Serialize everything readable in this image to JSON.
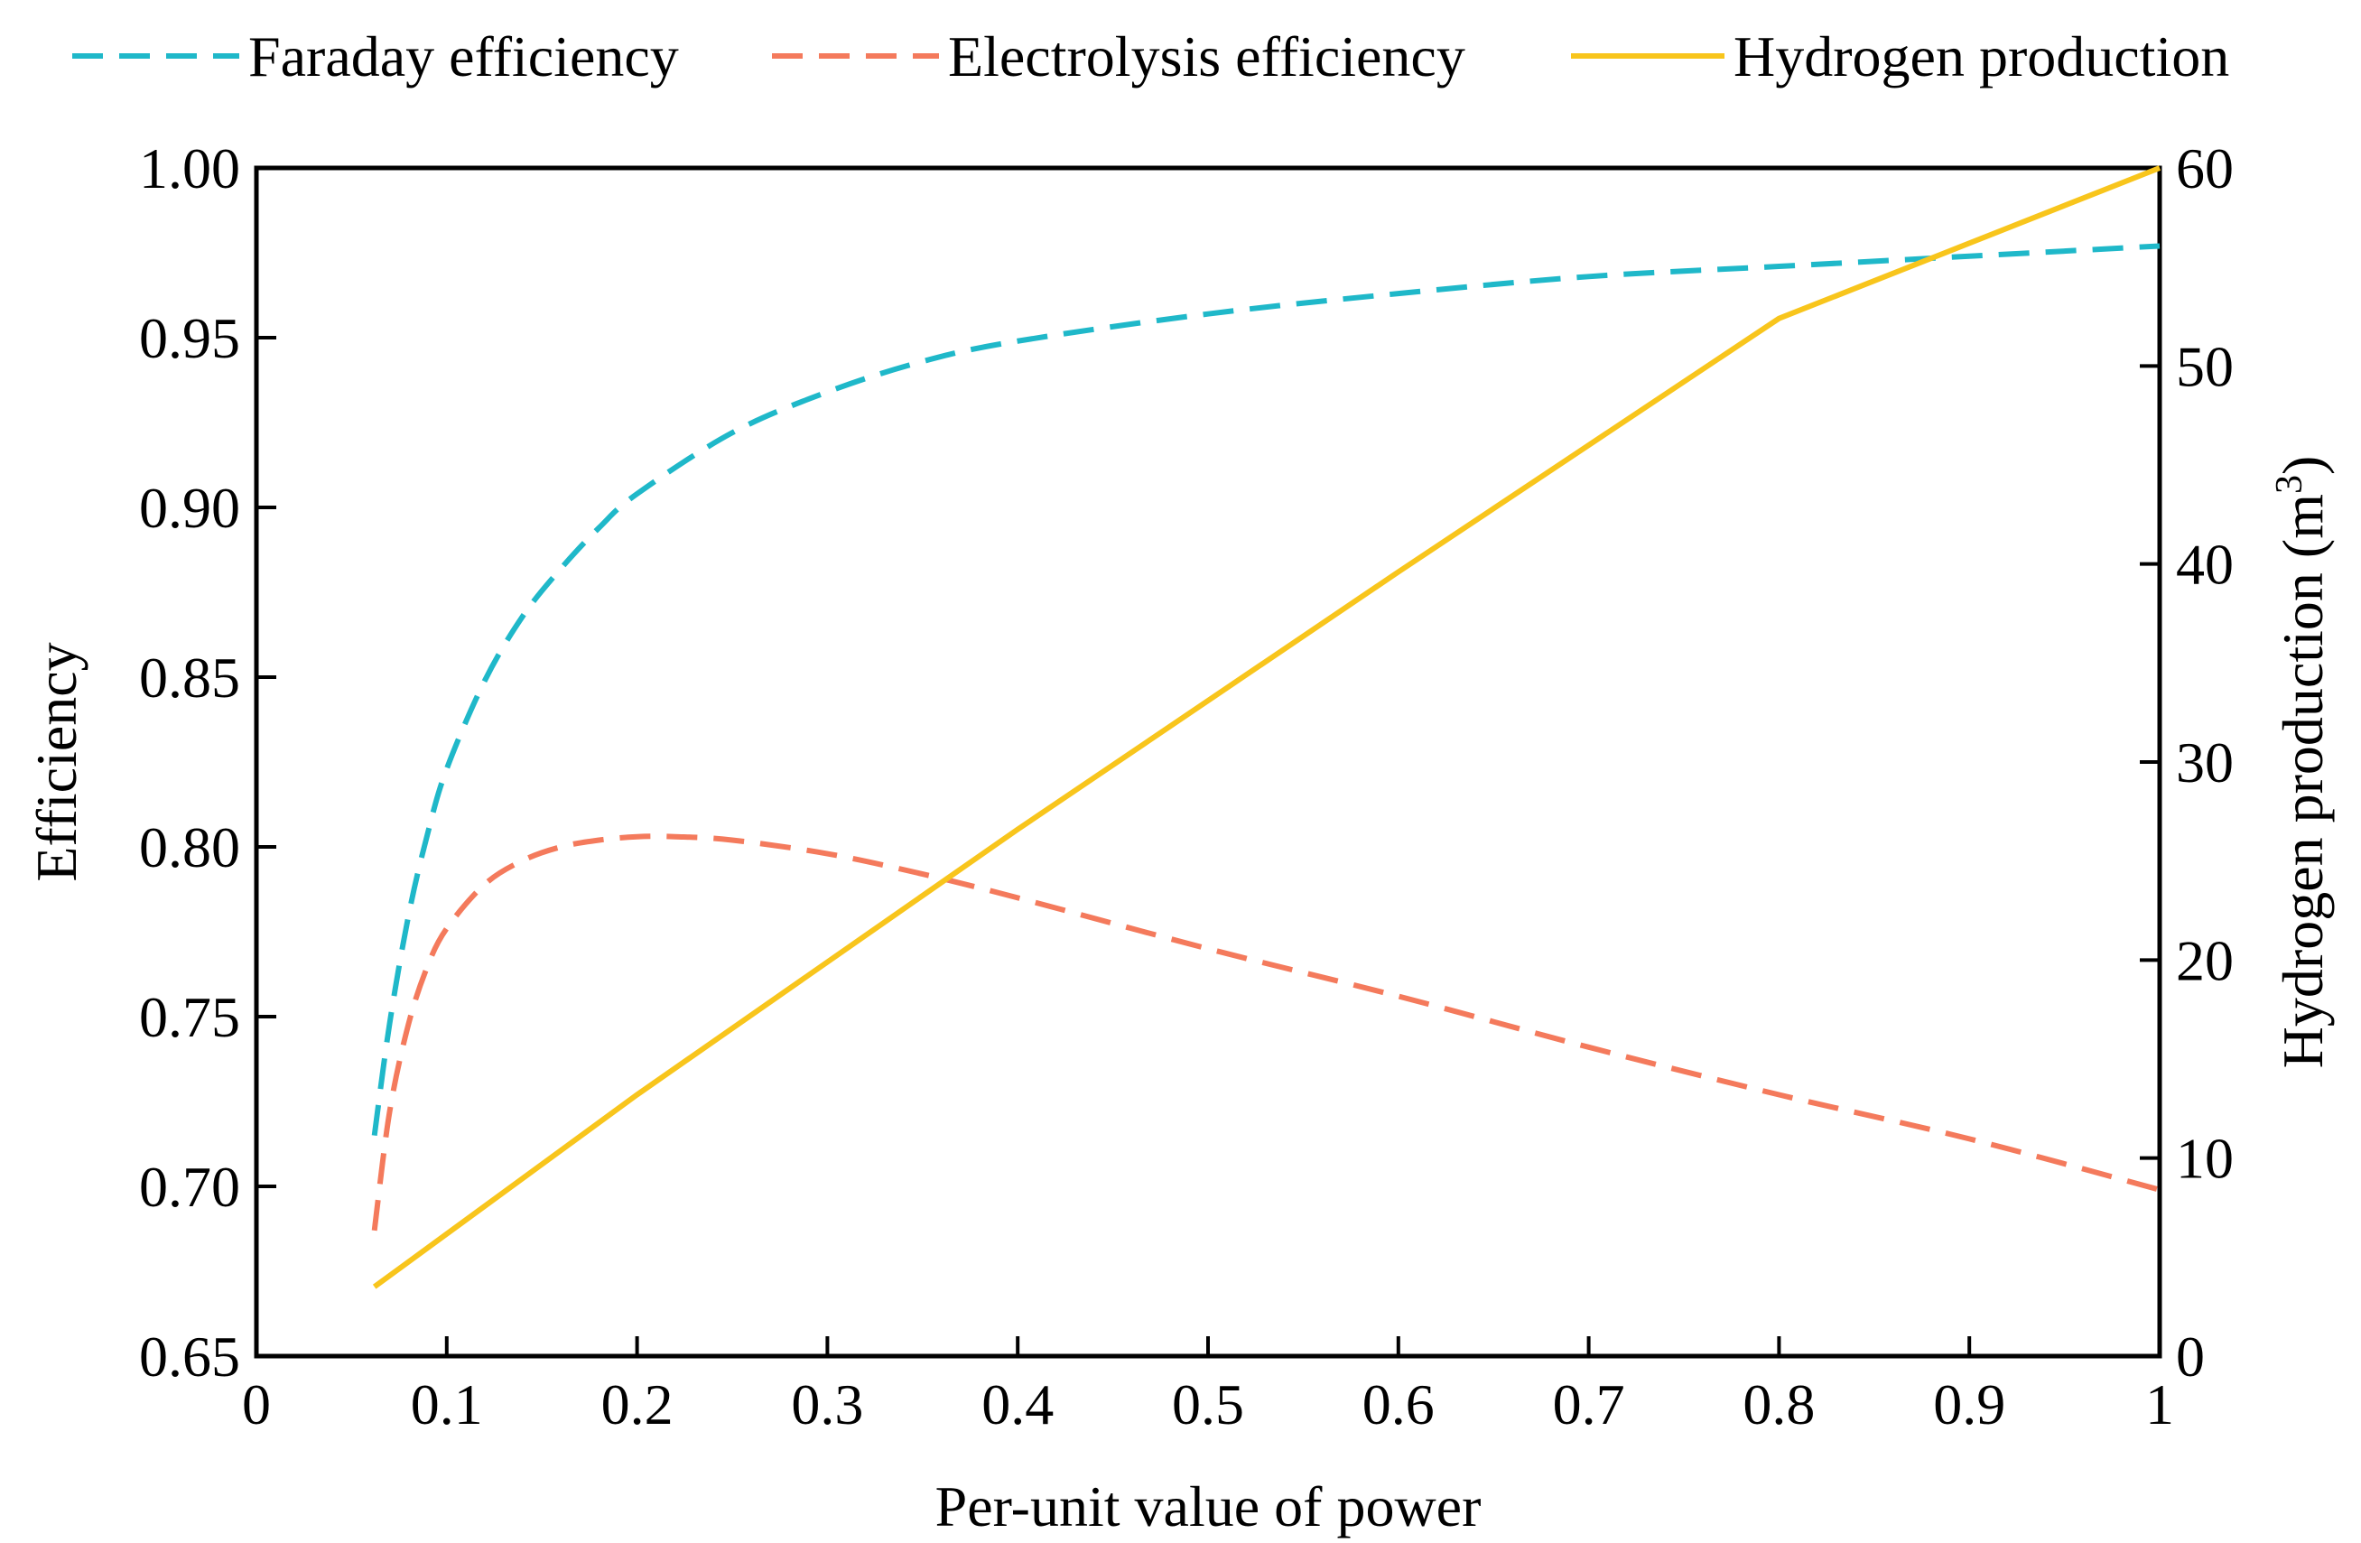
{
  "chart_data": {
    "type": "line",
    "title": "",
    "xlabel": "Per-unit value of power",
    "ylabel": "Efficiency",
    "y2label": {
      "text": "Hydrogen production (m",
      "sup": "3",
      "close": ")"
    },
    "xlim": [
      0,
      1
    ],
    "ylim": [
      0.65,
      1.0
    ],
    "y2lim": [
      0,
      60
    ],
    "xticks": [
      "0",
      "0.1",
      "0.2",
      "0.3",
      "0.4",
      "0.5",
      "0.6",
      "0.7",
      "0.8",
      "0.9",
      "1"
    ],
    "xtick_values": [
      0,
      0.1,
      0.2,
      0.3,
      0.4,
      0.5,
      0.6,
      0.7,
      0.8,
      0.9,
      1.0
    ],
    "yticks": [
      "0.65",
      "0.70",
      "0.75",
      "0.80",
      "0.85",
      "0.90",
      "0.95",
      "1.00"
    ],
    "ytick_values": [
      0.65,
      0.7,
      0.75,
      0.8,
      0.85,
      0.9,
      0.95,
      1.0
    ],
    "y2ticks": [
      "0",
      "10",
      "20",
      "30",
      "40",
      "50",
      "60"
    ],
    "y2tick_values": [
      0,
      10,
      20,
      30,
      40,
      50,
      60
    ],
    "grid": false,
    "legend_position": "top",
    "series": [
      {
        "name": "Faraday efficiency",
        "axis": "left",
        "style": "dashed",
        "color": "#1fb8c9",
        "x": [
          0.062,
          0.07,
          0.08,
          0.09,
          0.1,
          0.12,
          0.14,
          0.16,
          0.18,
          0.2,
          0.25,
          0.3,
          0.35,
          0.4,
          0.5,
          0.6,
          0.7,
          0.8,
          0.9,
          1.0
        ],
        "values": [
          0.715,
          0.748,
          0.78,
          0.804,
          0.823,
          0.849,
          0.868,
          0.882,
          0.894,
          0.904,
          0.922,
          0.934,
          0.943,
          0.949,
          0.957,
          0.963,
          0.968,
          0.971,
          0.974,
          0.977
        ]
      },
      {
        "name": "Electrolysis efficiency",
        "axis": "left",
        "style": "dashed",
        "color": "#f47a5c",
        "x": [
          0.062,
          0.07,
          0.08,
          0.09,
          0.1,
          0.12,
          0.14,
          0.16,
          0.18,
          0.2,
          0.22,
          0.25,
          0.3,
          0.35,
          0.4,
          0.5,
          0.6,
          0.7,
          0.8,
          0.9,
          1.0
        ],
        "values": [
          0.687,
          0.722,
          0.748,
          0.765,
          0.776,
          0.789,
          0.796,
          0.8,
          0.802,
          0.803,
          0.803,
          0.802,
          0.798,
          0.792,
          0.785,
          0.77,
          0.756,
          0.741,
          0.727,
          0.714,
          0.699
        ]
      },
      {
        "name": "Hydrogen production",
        "axis": "right",
        "style": "solid",
        "color": "#f8c51c",
        "x": [
          0.062,
          0.2,
          0.4,
          0.6,
          0.8,
          1.0
        ],
        "values": [
          3.5,
          13.2,
          26.6,
          39.6,
          52.4,
          60.0
        ]
      }
    ]
  }
}
